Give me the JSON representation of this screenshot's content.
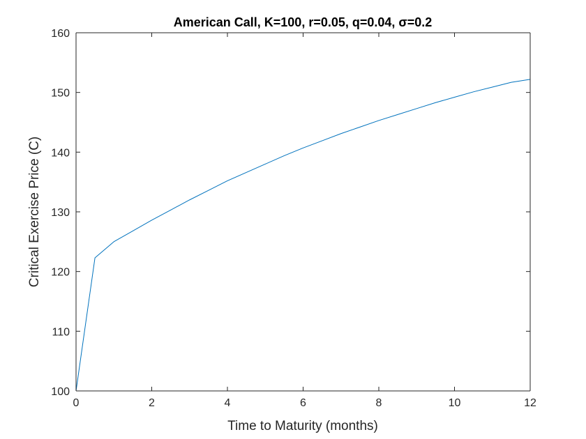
{
  "chart_data": {
    "type": "line",
    "title": "American  Call,  K=100, r=0.05, q=0.04, σ=0.2",
    "xlabel": "Time to Maturity (months)",
    "ylabel": "Critical Exercise Price (C)",
    "xlim": [
      0,
      12
    ],
    "ylim": [
      100,
      160
    ],
    "xticks": [
      0,
      2,
      4,
      6,
      8,
      10,
      12
    ],
    "yticks": [
      100,
      110,
      120,
      130,
      140,
      150,
      160
    ],
    "grid": false,
    "series": [
      {
        "color": "#0072BD",
        "x": [
          0,
          0.5,
          1,
          1.5,
          2,
          2.5,
          3,
          3.5,
          4,
          4.5,
          5,
          5.5,
          6,
          6.5,
          7,
          7.5,
          8,
          8.5,
          9,
          9.5,
          10,
          10.5,
          11,
          11.5,
          12
        ],
        "y": [
          100.0,
          122.3,
          125.0,
          126.8,
          128.6,
          130.3,
          132.0,
          133.6,
          135.2,
          136.6,
          138.0,
          139.4,
          140.7,
          141.9,
          143.1,
          144.2,
          145.3,
          146.3,
          147.3,
          148.3,
          149.2,
          150.1,
          150.9,
          151.7,
          152.2
        ]
      }
    ]
  }
}
